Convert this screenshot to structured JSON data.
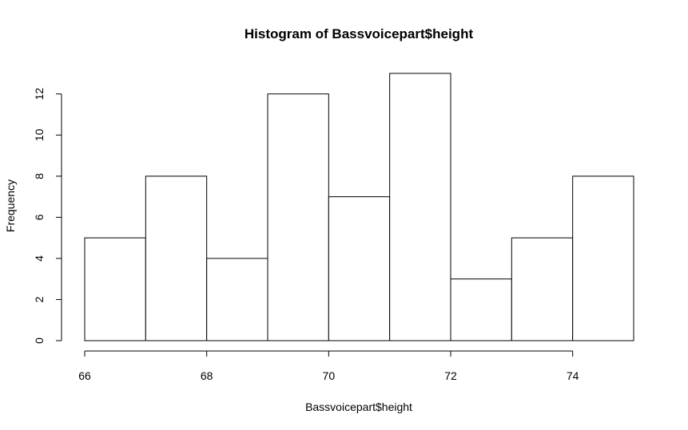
{
  "chart_data": {
    "type": "bar",
    "title": "Histogram of Bassvoicepart$height",
    "xlabel": "Bassvoicepart$height",
    "ylabel": "Frequency",
    "bins": [
      {
        "from": 66,
        "to": 67,
        "count": 5
      },
      {
        "from": 67,
        "to": 68,
        "count": 8
      },
      {
        "from": 68,
        "to": 69,
        "count": 4
      },
      {
        "from": 69,
        "to": 70,
        "count": 12
      },
      {
        "from": 70,
        "to": 71,
        "count": 7
      },
      {
        "from": 71,
        "to": 72,
        "count": 13
      },
      {
        "from": 72,
        "to": 73,
        "count": 3
      },
      {
        "from": 73,
        "to": 74,
        "count": 5
      },
      {
        "from": 74,
        "to": 75,
        "count": 8
      }
    ],
    "xticks": [
      66,
      68,
      70,
      72,
      74
    ],
    "yticks": [
      0,
      2,
      4,
      6,
      8,
      10,
      12
    ],
    "xlim": [
      66,
      75
    ],
    "ylim": [
      0,
      13
    ],
    "grid": false,
    "fill_color": "#ffffff",
    "stroke_color": "#000000"
  }
}
